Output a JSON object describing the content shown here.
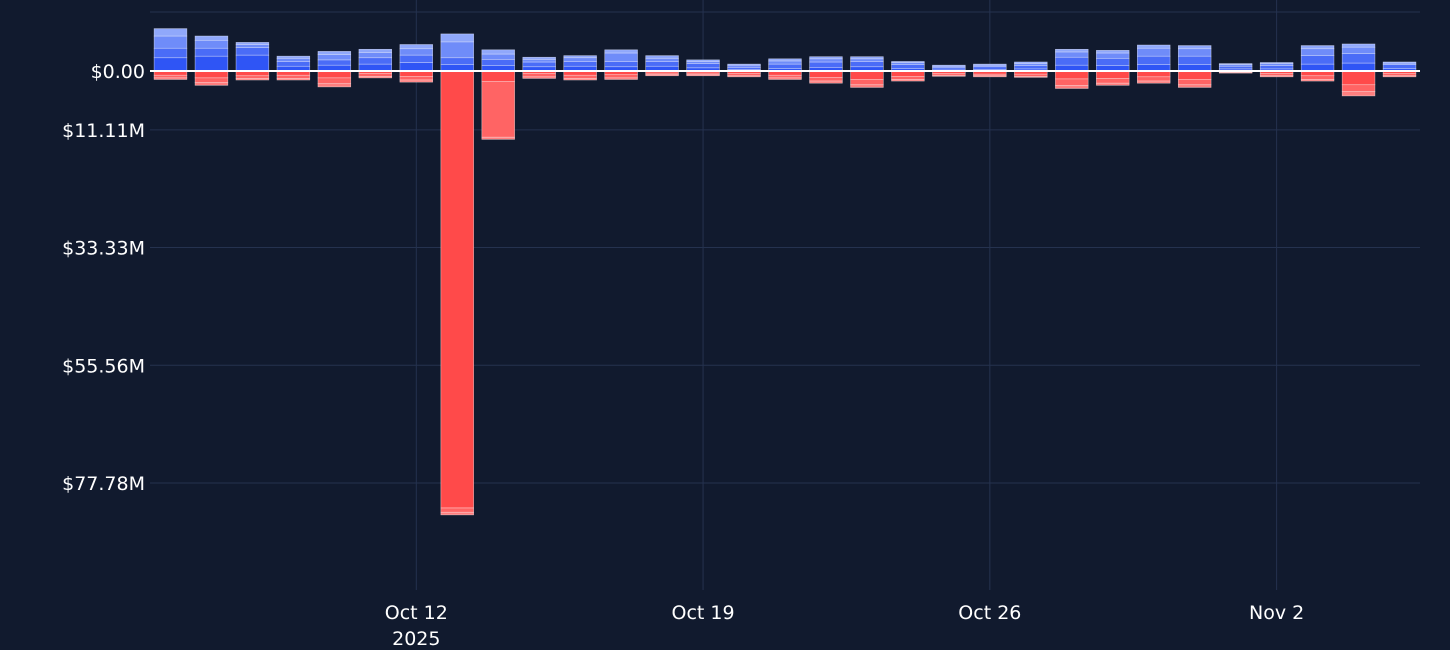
{
  "chart_data": {
    "type": "bar",
    "barmode": "relative",
    "grid": true,
    "y_axis": {
      "reversed_sign_display": true,
      "range": [
        -93,
        12
      ],
      "ticks": [
        {
          "value": 0,
          "label": "$0.00"
        },
        {
          "value": -11.11,
          "label": "$11.11M"
        },
        {
          "value": -33.33,
          "label": "$33.33M"
        },
        {
          "value": -55.56,
          "label": "$55.56M"
        },
        {
          "value": -77.78,
          "label": "$77.78M"
        }
      ]
    },
    "x_axis": {
      "range": [
        "2025-10-05T12:00",
        "2025-11-05T12:00"
      ],
      "ticks": [
        {
          "date": "2025-10-12",
          "label": "Oct 12",
          "sublabel": "2025"
        },
        {
          "date": "2025-10-19",
          "label": "Oct 19",
          "sublabel": ""
        },
        {
          "date": "2025-10-26",
          "label": "Oct 26",
          "sublabel": ""
        },
        {
          "date": "2025-11-02",
          "label": "Nov 2",
          "sublabel": ""
        }
      ]
    },
    "colors": {
      "positive": [
        "#2f55f5",
        "#4a6cf7",
        "#6f8cf9",
        "#90a8fb",
        "#b4c4fd"
      ],
      "negative": [
        "#ff4a4a",
        "#ff6464",
        "#ff7f7f",
        "#ff9a9a",
        "#ffb9b9"
      ],
      "grid": "#25324f",
      "zero_line": "#ffffff",
      "background": "#111a2e"
    },
    "x": [
      "2025-10-06",
      "2025-10-07",
      "2025-10-08",
      "2025-10-09",
      "2025-10-10",
      "2025-10-11",
      "2025-10-12",
      "2025-10-13",
      "2025-10-14",
      "2025-10-15",
      "2025-10-16",
      "2025-10-17",
      "2025-10-18",
      "2025-10-19",
      "2025-10-20",
      "2025-10-21",
      "2025-10-22",
      "2025-10-23",
      "2025-10-24",
      "2025-10-25",
      "2025-10-26",
      "2025-10-27",
      "2025-10-28",
      "2025-10-29",
      "2025-10-30",
      "2025-10-31",
      "2025-11-01",
      "2025-11-02",
      "2025-11-03",
      "2025-11-04",
      "2025-11-05"
    ],
    "positive_stacks": [
      [
        2.5,
        1.8,
        2.3,
        1.4
      ],
      [
        2.8,
        1.5,
        1.5,
        0.8
      ],
      [
        3.0,
        1.4,
        0.6,
        0.4
      ],
      [
        0.9,
        0.9,
        0.6,
        0.4
      ],
      [
        1.1,
        1.0,
        1.0,
        0.6
      ],
      [
        1.3,
        1.2,
        1.0,
        0.6
      ],
      [
        1.6,
        1.4,
        1.2,
        0.8
      ],
      [
        1.2,
        1.3,
        3.0,
        1.5
      ],
      [
        1.0,
        1.2,
        1.0,
        0.8
      ],
      [
        0.8,
        0.9,
        0.5,
        0.4
      ],
      [
        0.9,
        0.9,
        0.7,
        0.4
      ],
      [
        0.8,
        1.0,
        1.6,
        0.6
      ],
      [
        0.9,
        0.9,
        0.6,
        0.5
      ],
      [
        0.6,
        0.8,
        0.4,
        0.3
      ],
      [
        0.3,
        0.4,
        0.4,
        0.2
      ],
      [
        0.5,
        0.8,
        0.6,
        0.4
      ],
      [
        0.7,
        1.0,
        0.6,
        0.4
      ],
      [
        0.8,
        1.0,
        0.5,
        0.4
      ],
      [
        0.5,
        0.7,
        0.4,
        0.2
      ],
      [
        0.2,
        0.4,
        0.3,
        0.2
      ],
      [
        0.3,
        0.5,
        0.3,
        0.2
      ],
      [
        0.4,
        0.6,
        0.4,
        0.3
      ],
      [
        1.1,
        1.5,
        1.0,
        0.5
      ],
      [
        1.0,
        1.4,
        1.0,
        0.5
      ],
      [
        1.2,
        1.6,
        1.5,
        0.6
      ],
      [
        1.2,
        1.6,
        1.4,
        0.6
      ],
      [
        0.4,
        0.5,
        0.3,
        0.2
      ],
      [
        0.4,
        0.6,
        0.4,
        0.2
      ],
      [
        1.3,
        1.6,
        1.3,
        0.6
      ],
      [
        1.5,
        1.8,
        1.2,
        0.6
      ],
      [
        0.5,
        0.7,
        0.3,
        0.2
      ]
    ],
    "negative_stacks": [
      [
        -0.8,
        -0.5,
        -0.3
      ],
      [
        -1.3,
        -0.9,
        -0.5
      ],
      [
        -0.9,
        -0.5,
        -0.3
      ],
      [
        -0.8,
        -0.6,
        -0.3
      ],
      [
        -1.3,
        -1.1,
        -0.6
      ],
      [
        -0.5,
        -0.5,
        -0.3
      ],
      [
        -1.0,
        -0.7,
        -0.4
      ],
      [
        -82.5,
        -0.8,
        -0.5
      ],
      [
        -2.0,
        -10.5,
        -0.4
      ],
      [
        -0.5,
        -0.6,
        -0.3
      ],
      [
        -0.8,
        -0.6,
        -0.3
      ],
      [
        -0.7,
        -0.6,
        -0.3
      ],
      [
        -0.4,
        -0.3,
        -0.2
      ],
      [
        -0.4,
        -0.3,
        -0.2
      ],
      [
        -0.5,
        -0.4,
        -0.2
      ],
      [
        -0.8,
        -0.5,
        -0.3
      ],
      [
        -1.2,
        -0.7,
        -0.4
      ],
      [
        -1.6,
        -1.0,
        -0.5
      ],
      [
        -1.0,
        -0.6,
        -0.3
      ],
      [
        -0.5,
        -0.3,
        -0.2
      ],
      [
        -0.6,
        -0.3,
        -0.2
      ],
      [
        -0.6,
        -0.4,
        -0.2
      ],
      [
        -1.5,
        -1.2,
        -0.6
      ],
      [
        -1.4,
        -0.9,
        -0.4
      ],
      [
        -1.1,
        -0.8,
        -0.4
      ],
      [
        -1.6,
        -1.0,
        -0.5
      ],
      [
        -0.2,
        -0.1,
        -0.1
      ],
      [
        -0.5,
        -0.4,
        -0.2
      ],
      [
        -0.9,
        -0.7,
        -0.3
      ],
      [
        -2.6,
        -1.3,
        -0.8
      ],
      [
        -0.5,
        -0.4,
        -0.2
      ]
    ]
  }
}
